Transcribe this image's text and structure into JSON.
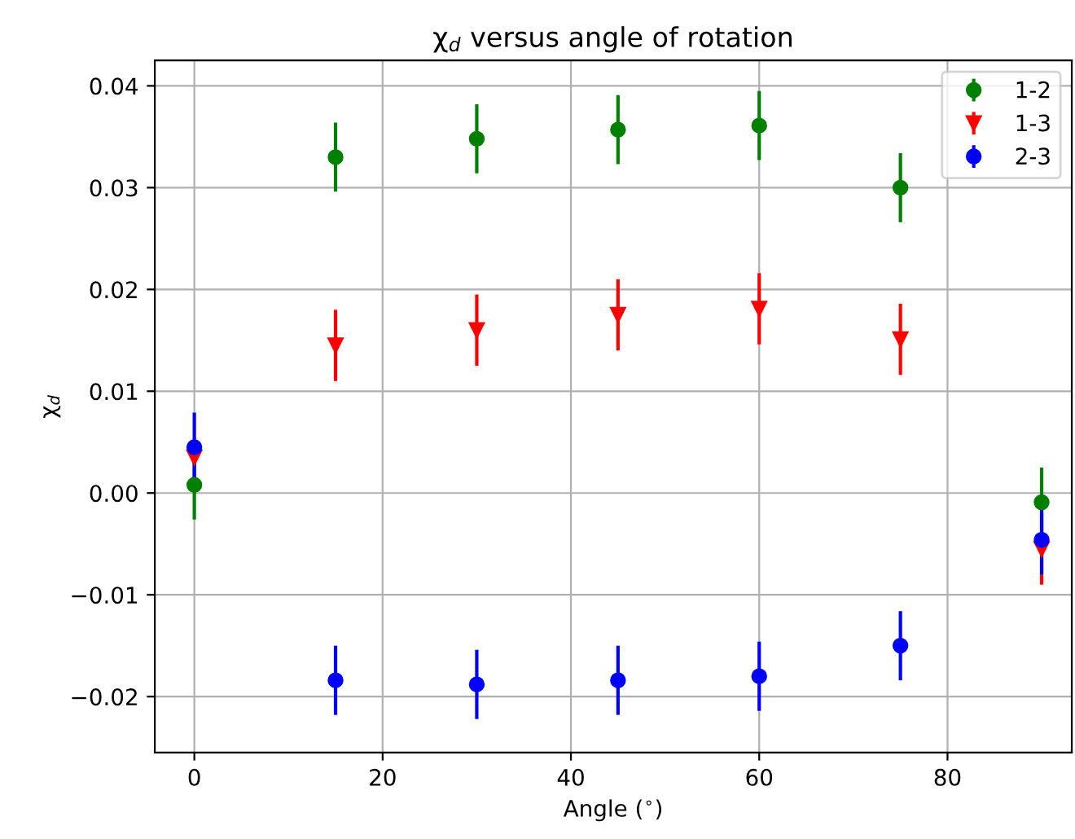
{
  "chart_data": {
    "type": "scatter",
    "title": "χ$_{d}$ versus angle of rotation",
    "xlabel": "Angle ($^{∘}$)",
    "ylabel": "χ$_{d}$",
    "x": [
      0,
      15,
      30,
      45,
      60,
      75,
      90
    ],
    "series": [
      {
        "name": "1-2",
        "color": "#008000",
        "marker": "circle",
        "values": [
          0.0008,
          0.033,
          0.0348,
          0.0357,
          0.0361,
          0.03,
          -0.0009
        ],
        "errors": [
          0.0034,
          0.0034,
          0.0034,
          0.0034,
          0.0034,
          0.0034,
          0.0034
        ]
      },
      {
        "name": "1-3",
        "color": "#ff0000",
        "marker": "triangle",
        "values": [
          0.0035,
          0.0145,
          0.016,
          0.0175,
          0.0181,
          0.0151,
          -0.0055
        ],
        "errors": [
          null,
          0.0035,
          0.0035,
          0.0035,
          0.0035,
          0.0035,
          0.0035
        ]
      },
      {
        "name": "2-3",
        "color": "#0000ff",
        "marker": "circle",
        "values": [
          0.0045,
          -0.0184,
          -0.0188,
          -0.0184,
          -0.018,
          -0.015,
          -0.0046
        ],
        "errors": [
          0.0034,
          0.0034,
          0.0034,
          0.0034,
          0.0034,
          0.0034,
          0.0034
        ]
      }
    ],
    "xlim": [
      -4.2,
      93.2
    ],
    "xticks": [
      0,
      20,
      40,
      60,
      80
    ],
    "ylim": [
      -0.0255,
      0.0425
    ],
    "yticks": [
      {
        "value": -0.02,
        "label": "−0.02"
      },
      {
        "value": -0.01,
        "label": "−0.01"
      },
      {
        "value": 0,
        "label": "0.00"
      },
      {
        "value": 0.01,
        "label": "0.01"
      },
      {
        "value": 0.02,
        "label": "0.02"
      },
      {
        "value": 0.03,
        "label": "0.03"
      },
      {
        "value": 0.04,
        "label": "0.04"
      }
    ],
    "grid": true,
    "legend": "top right"
  }
}
